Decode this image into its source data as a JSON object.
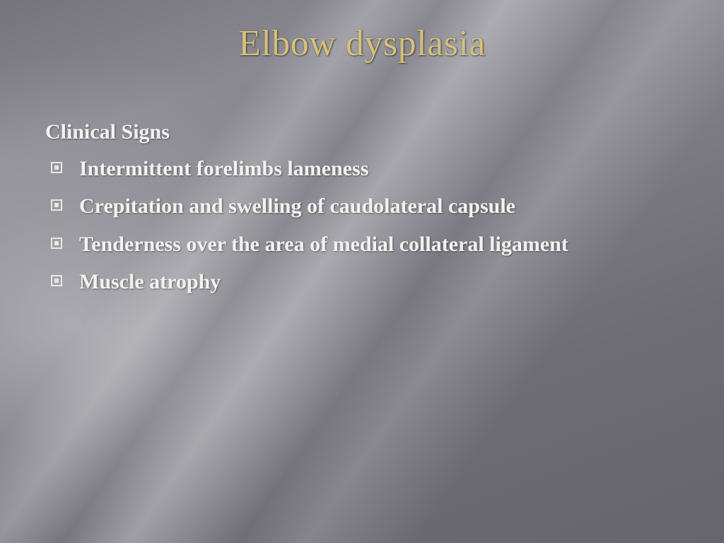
{
  "title": "Elbow dysplasia",
  "heading": "Clinical Signs",
  "bullets": [
    "Intermittent forelimbs lameness",
    "Crepitation and swelling of caudolateral capsule",
    "Tenderness over the area of medial collateral ligament",
    "Muscle atrophy"
  ],
  "style": {
    "title_color": "#d6c07a",
    "body_color": "#f3f2ee",
    "background_base": "#7e7d86",
    "title_fontsize": 52,
    "body_fontsize": 30,
    "font_family": "Palatino Linotype",
    "bullet_shape": "hollow-square-with-dot"
  }
}
